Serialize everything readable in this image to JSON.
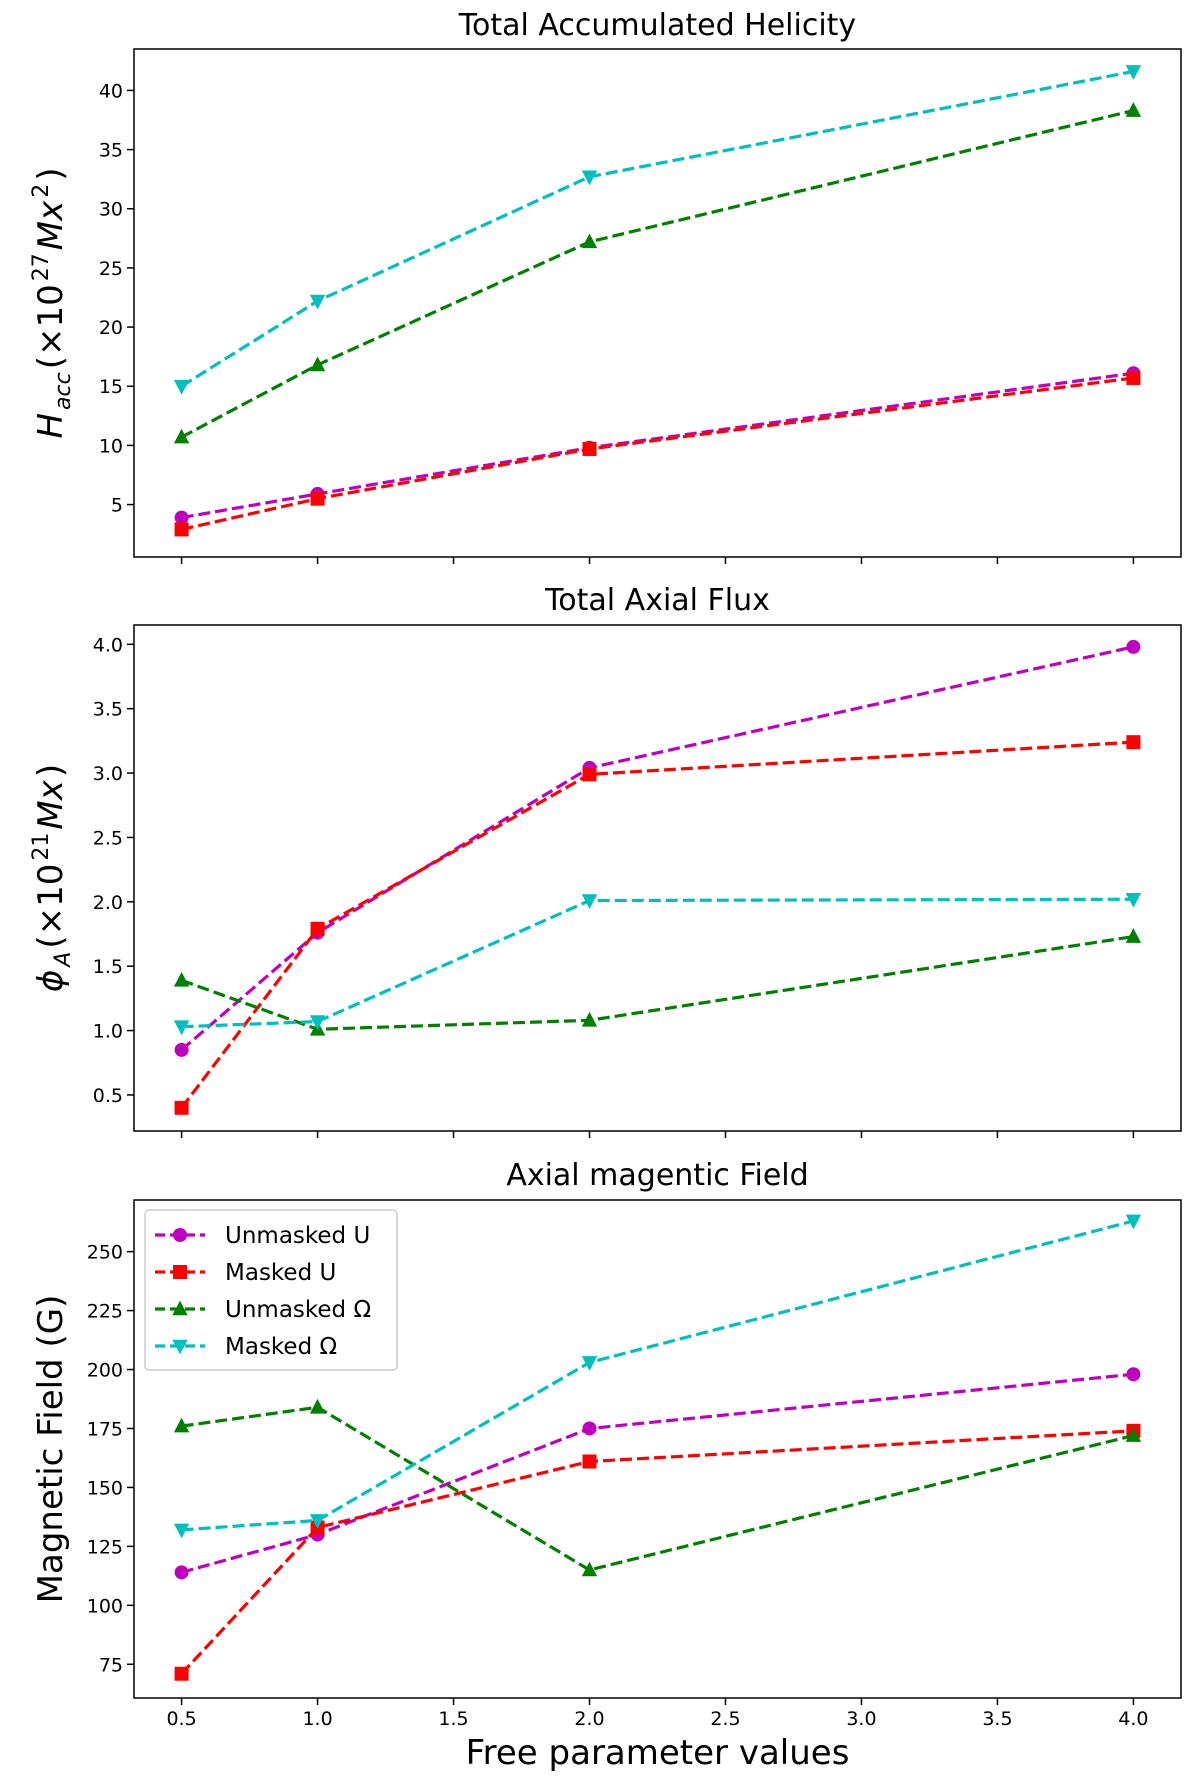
{
  "chart_data": [
    {
      "type": "line",
      "title": "Total Accumulated Helicity",
      "ylabel": {
        "main": "H",
        "sub": "acc",
        "pre": "(×10",
        "sup": "27",
        "mid": "Mx",
        "sup2": "2",
        "post": ")"
      },
      "xlabel": "",
      "x": [
        0.5,
        1.0,
        2.0,
        4.0
      ],
      "xlim": [
        0.325,
        4.175
      ],
      "ylim": [
        0.57,
        43.5
      ],
      "yticks": [
        5,
        10,
        15,
        20,
        25,
        30,
        35,
        40
      ],
      "xticks": [
        0.5,
        1.0,
        1.5,
        2.0,
        2.5,
        3.0,
        3.5,
        4.0
      ],
      "show_xtick_labels": false,
      "series": [
        {
          "key": "unmasked_u",
          "values": [
            3.9,
            5.9,
            9.8,
            16.1
          ]
        },
        {
          "key": "masked_u",
          "values": [
            2.9,
            5.5,
            9.7,
            15.7
          ]
        },
        {
          "key": "unmasked_omega",
          "values": [
            10.7,
            16.8,
            27.2,
            38.3
          ]
        },
        {
          "key": "masked_omega",
          "values": [
            15.0,
            22.2,
            32.7,
            41.6
          ]
        }
      ]
    },
    {
      "type": "line",
      "title": "Total Axial Flux",
      "ylabel": {
        "main": "ϕ",
        "sub": "A",
        "pre": "(×10",
        "sup": "21",
        "mid": "Mx",
        "sup2": "",
        "post": ")"
      },
      "xlabel": "",
      "x": [
        0.5,
        1.0,
        2.0,
        4.0
      ],
      "xlim": [
        0.325,
        4.175
      ],
      "ylim": [
        0.22,
        4.15
      ],
      "yticks": [
        0.5,
        1.0,
        1.5,
        2.0,
        2.5,
        3.0,
        3.5,
        4.0
      ],
      "xticks": [
        0.5,
        1.0,
        1.5,
        2.0,
        2.5,
        3.0,
        3.5,
        4.0
      ],
      "show_xtick_labels": false,
      "series": [
        {
          "key": "unmasked_u",
          "values": [
            0.85,
            1.76,
            3.04,
            3.98
          ]
        },
        {
          "key": "masked_u",
          "values": [
            0.4,
            1.79,
            2.99,
            3.24
          ]
        },
        {
          "key": "unmasked_omega",
          "values": [
            1.39,
            1.01,
            1.08,
            1.73
          ]
        },
        {
          "key": "masked_omega",
          "values": [
            1.03,
            1.07,
            2.01,
            2.02
          ]
        }
      ]
    },
    {
      "type": "line",
      "title": "Axial magentic Field",
      "ylabel": {
        "main": "Magnetic Field (G)"
      },
      "xlabel": "Free parameter values",
      "x": [
        0.5,
        1.0,
        2.0,
        4.0
      ],
      "xlim": [
        0.325,
        4.175
      ],
      "ylim": [
        60.7,
        271.9
      ],
      "yticks": [
        75,
        100,
        125,
        150,
        175,
        200,
        225,
        250
      ],
      "xticks": [
        0.5,
        1.0,
        1.5,
        2.0,
        2.5,
        3.0,
        3.5,
        4.0
      ],
      "xtick_labels": [
        "0.5",
        "1.0",
        "1.5",
        "2.0",
        "2.5",
        "3.0",
        "3.5",
        "4.0"
      ],
      "show_xtick_labels": true,
      "legend": "top-left",
      "series": [
        {
          "key": "unmasked_u",
          "name": "Unmasked U",
          "values": [
            114,
            130,
            175,
            198
          ]
        },
        {
          "key": "masked_u",
          "name": "Masked U",
          "values": [
            71,
            133,
            161,
            174
          ]
        },
        {
          "key": "unmasked_omega",
          "name": "Unmasked Ω",
          "values": [
            176,
            184,
            115,
            172
          ]
        },
        {
          "key": "masked_omega",
          "name": "Masked Ω",
          "values": [
            132,
            136,
            203,
            263
          ]
        }
      ]
    }
  ],
  "styles": {
    "unmasked_u": {
      "color": "#bf00bf",
      "marker": "circle"
    },
    "masked_u": {
      "color": "#ff0000",
      "marker": "square"
    },
    "unmasked_omega": {
      "color": "#008000",
      "marker": "triangle-up"
    },
    "masked_omega": {
      "color": "#00bfbf",
      "marker": "triangle-down"
    }
  },
  "grid": false
}
